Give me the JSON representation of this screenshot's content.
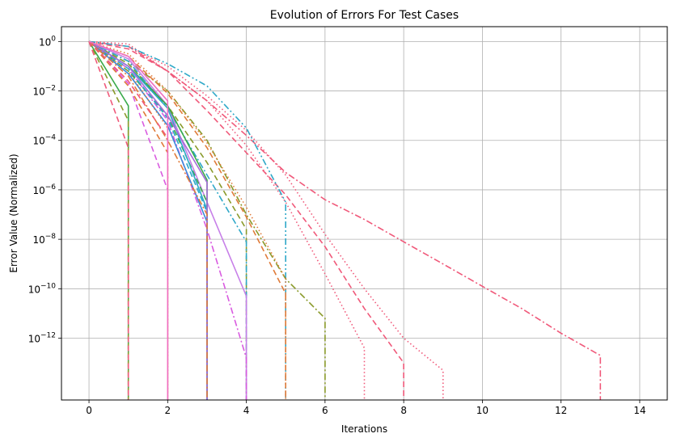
{
  "chart_data": {
    "type": "line",
    "title": "Evolution of Errors For Test Cases",
    "xlabel": "Iterations",
    "ylabel": "Error Value (Normalized)",
    "xlim": [
      -0.7,
      14.7
    ],
    "ylim_log10": [
      -14.5,
      0.6
    ],
    "y_scale": "log",
    "grid": true,
    "x_ticks": [
      0,
      2,
      4,
      6,
      8,
      10,
      12,
      14
    ],
    "x_tick_labels": [
      "0",
      "2",
      "4",
      "6",
      "8",
      "10",
      "12",
      "14"
    ],
    "y_ticks_log10": [
      0,
      -2,
      -4,
      -6,
      -8,
      -10,
      -12
    ],
    "y_tick_labels": [
      {
        "base": "10",
        "exp": "0"
      },
      {
        "base": "10",
        "exp": "−2"
      },
      {
        "base": "10",
        "exp": "−4"
      },
      {
        "base": "10",
        "exp": "−6"
      },
      {
        "base": "10",
        "exp": "−8"
      },
      {
        "base": "10",
        "exp": "−10"
      },
      {
        "base": "10",
        "exp": "−12"
      }
    ],
    "series": [
      {
        "color": "#f0597a",
        "dash": "dashdot",
        "x": [
          0,
          1,
          2,
          3,
          4,
          5,
          6,
          7,
          8,
          9,
          10,
          11,
          12,
          13
        ],
        "y_log10": [
          0,
          -0.2,
          -1.2,
          -2.4,
          -3.8,
          -5.3,
          -6.4,
          -7.2,
          -8.1,
          -9.0,
          -9.9,
          -10.8,
          -11.8,
          -12.7
        ]
      },
      {
        "color": "#f0597a",
        "dash": "dotted",
        "x": [
          0,
          1,
          2,
          3,
          4,
          5,
          6,
          7,
          8,
          9
        ],
        "y_log10": [
          0,
          -0.2,
          -1.0,
          -2.2,
          -3.6,
          -5.4,
          -7.8,
          -10.0,
          -12.0,
          -13.3
        ]
      },
      {
        "color": "#f0597a",
        "dash": "dashed",
        "x": [
          0,
          1,
          2,
          3,
          4,
          5,
          6,
          7,
          8
        ],
        "y_log10": [
          0,
          -0.3,
          -1.2,
          -2.8,
          -4.5,
          -6.2,
          -8.3,
          -10.8,
          -13.0
        ]
      },
      {
        "color": "#f0597a",
        "dash": "dotted",
        "x": [
          0,
          1,
          2,
          3,
          4,
          5,
          6,
          7
        ],
        "y_log10": [
          0,
          -0.1,
          -1.2,
          -2.4,
          -4.2,
          -6.5,
          -9.4,
          -12.4
        ]
      },
      {
        "color": "#2ea8c8",
        "dash": "dashdotdot",
        "x": [
          0,
          1,
          2,
          3,
          4,
          5
        ],
        "y_log10": [
          0,
          -0.2,
          -0.9,
          -1.8,
          -3.5,
          -6.5
        ]
      },
      {
        "color": "#8a9a2a",
        "dash": "dashdot",
        "x": [
          0,
          1,
          2,
          3,
          4,
          5,
          6
        ],
        "y_log10": [
          0,
          -0.8,
          -2.0,
          -4.0,
          -7.0,
          -9.6,
          -11.2
        ]
      },
      {
        "color": "#e07b39",
        "dash": "dashed",
        "x": [
          0,
          1,
          2,
          3,
          4,
          5
        ],
        "y_log10": [
          0,
          -0.6,
          -2.1,
          -4.3,
          -7.1,
          -10.2
        ]
      },
      {
        "color": "#e07b39",
        "dash": "dotted",
        "x": [
          0,
          1,
          2,
          3,
          4,
          5
        ],
        "y_log10": [
          0,
          -0.5,
          -2.0,
          -4.1,
          -6.7,
          -9.6
        ]
      },
      {
        "color": "#8a9a2a",
        "dash": "dashed",
        "x": [
          0,
          1,
          2,
          3,
          4
        ],
        "y_log10": [
          0,
          -0.9,
          -2.6,
          -4.9,
          -7.6
        ]
      },
      {
        "color": "#2ea8c8",
        "dash": "dashdot",
        "x": [
          0,
          1,
          2,
          3,
          4
        ],
        "y_log10": [
          0,
          -0.8,
          -2.7,
          -5.4,
          -8.1
        ]
      },
      {
        "color": "#c77fe8",
        "dash": "solid",
        "x": [
          0,
          1,
          2,
          3,
          4
        ],
        "y_log10": [
          0,
          -0.7,
          -2.6,
          -6.5,
          -10.3
        ]
      },
      {
        "color": "#d95be0",
        "dash": "dashdot",
        "x": [
          0,
          1,
          2,
          3,
          4
        ],
        "y_log10": [
          0,
          -1.1,
          -3.2,
          -7.6,
          -12.8
        ]
      },
      {
        "color": "#3aaa4a",
        "dash": "solid",
        "x": [
          0,
          1,
          2,
          3
        ],
        "y_log10": [
          0,
          -1.0,
          -2.6,
          -5.6
        ]
      },
      {
        "color": "#3aaa4a",
        "dash": "dashed",
        "x": [
          0,
          1,
          2,
          3
        ],
        "y_log10": [
          0,
          -1.2,
          -3.0,
          -6.5
        ]
      },
      {
        "color": "#2ea8c8",
        "dash": "solid",
        "x": [
          0,
          1,
          2,
          3
        ],
        "y_log10": [
          0,
          -1.0,
          -2.7,
          -6.8
        ]
      },
      {
        "color": "#3d88d9",
        "dash": "solid",
        "x": [
          0,
          1,
          2,
          3
        ],
        "y_log10": [
          0,
          -1.3,
          -3.4,
          -7.3
        ]
      },
      {
        "color": "#2ea8c8",
        "dash": "dashed",
        "x": [
          0,
          1,
          2,
          3
        ],
        "y_log10": [
          0,
          -1.1,
          -3.1,
          -6.9
        ]
      },
      {
        "color": "#a56ad9",
        "dash": "solid",
        "x": [
          0,
          1,
          2,
          3
        ],
        "y_log10": [
          0,
          -1.0,
          -3.0,
          -5.7
        ]
      },
      {
        "color": "#e07b39",
        "dash": "dashdot",
        "x": [
          0,
          1,
          2,
          3
        ],
        "y_log10": [
          0,
          -1.4,
          -4.0,
          -7.0
        ]
      },
      {
        "color": "#3aaa4a",
        "dash": "solid",
        "x": [
          0,
          1
        ],
        "y_log10": [
          0,
          -2.6
        ]
      },
      {
        "color": "#8a9a2a",
        "dash": "dashed",
        "x": [
          0,
          1
        ],
        "y_log10": [
          0,
          -3.2
        ]
      },
      {
        "color": "#f0597a",
        "dash": "dashed",
        "x": [
          0,
          1
        ],
        "y_log10": [
          0,
          -4.3
        ]
      },
      {
        "color": "#d95be0",
        "dash": "dashed",
        "x": [
          0,
          1,
          2
        ],
        "y_log10": [
          0,
          -1.7,
          -6.0
        ]
      },
      {
        "color": "#e07b39",
        "dash": "dashed",
        "x": [
          0,
          1,
          2
        ],
        "y_log10": [
          0,
          -1.8,
          -4.5
        ]
      },
      {
        "color": "#f0597a",
        "dash": "dashed",
        "x": [
          0,
          1,
          2
        ],
        "y_log10": [
          0,
          -1.6,
          -3.9
        ]
      },
      {
        "color": "#e07b39",
        "dash": "dotted",
        "x": [
          0,
          1,
          2
        ],
        "y_log10": [
          0,
          -1.2,
          -3.5
        ]
      },
      {
        "color": "#f06fc0",
        "dash": "solid",
        "x": [
          0,
          1,
          2
        ],
        "y_log10": [
          0,
          -0.6,
          -2.4
        ]
      }
    ]
  }
}
